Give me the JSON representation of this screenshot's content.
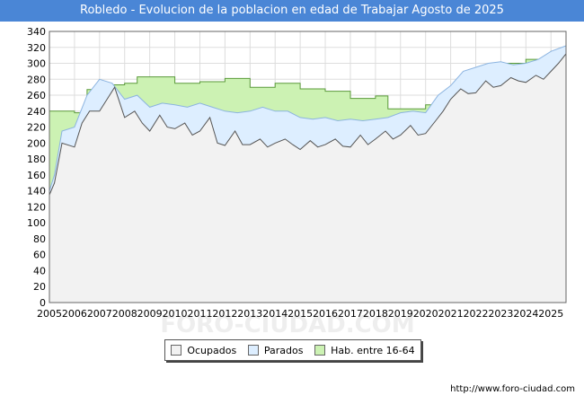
{
  "title": "Robledo - Evolucion de la poblacion en edad de Trabajar Agosto de 2025",
  "credit": "http://www.foro-ciudad.com",
  "watermark": "FORO-CIUDAD.COM",
  "colors": {
    "title_bg": "#4a86d6",
    "ocupados_fill": "#f2f2f2",
    "ocupados_line": "#555555",
    "parados_fill": "#ddeeff",
    "parados_line": "#8cb4e0",
    "hab_fill": "#ccf2b3",
    "hab_line": "#5a9a3a"
  },
  "chart_data": {
    "type": "area",
    "title": "Robledo - Evolucion de la poblacion en edad de Trabajar Agosto de 2025",
    "xlabel": "",
    "ylabel": "",
    "xlim": [
      2005,
      2025.6
    ],
    "ylim": [
      0,
      340
    ],
    "x_ticks": [
      "2005",
      "2006",
      "2007",
      "2008",
      "2009",
      "2010",
      "2011",
      "2012",
      "2013",
      "2014",
      "2015",
      "2016",
      "2017",
      "2018",
      "2019",
      "2020",
      "2021",
      "2022",
      "2023",
      "2024",
      "2025"
    ],
    "y_ticks": [
      0,
      20,
      40,
      60,
      80,
      100,
      120,
      140,
      160,
      180,
      200,
      220,
      240,
      260,
      280,
      300,
      320,
      340
    ],
    "grid": true,
    "legend": "bottom-center",
    "series": [
      {
        "name": "Hab. entre 16-64",
        "x": [
          2005,
          2005.3,
          2005.5,
          2006,
          2006.5,
          2007,
          2007.5,
          2008,
          2008.5,
          2009,
          2010,
          2011,
          2012,
          2013,
          2014,
          2015,
          2016,
          2017,
          2018,
          2018.5,
          2019,
          2020,
          2020.2,
          2021,
          2022,
          2023,
          2024,
          2025,
          2025.6
        ],
        "values": [
          240,
          240,
          240,
          238,
          267,
          267,
          273,
          275,
          283,
          283,
          275,
          277,
          281,
          270,
          275,
          268,
          265,
          256,
          259,
          243,
          243,
          248,
          248,
          270,
          282,
          300,
          305,
          315,
          320
        ]
      },
      {
        "name": "Parados",
        "x": [
          2005,
          2005.2,
          2005.5,
          2006,
          2006.5,
          2007,
          2007.5,
          2008,
          2008.5,
          2009,
          2009.5,
          2010,
          2010.5,
          2011,
          2011.5,
          2012,
          2012.5,
          2013,
          2013.5,
          2014,
          2014.5,
          2015,
          2015.5,
          2016,
          2016.5,
          2017,
          2017.5,
          2018,
          2018.5,
          2019,
          2019.5,
          2020,
          2020.5,
          2021,
          2021.5,
          2022,
          2022.5,
          2023,
          2023.5,
          2024,
          2024.5,
          2025,
          2025.6
        ],
        "values": [
          140,
          160,
          215,
          220,
          260,
          280,
          275,
          255,
          260,
          245,
          250,
          248,
          245,
          250,
          245,
          240,
          238,
          240,
          245,
          240,
          240,
          232,
          230,
          232,
          228,
          230,
          228,
          230,
          232,
          238,
          240,
          238,
          260,
          272,
          290,
          295,
          300,
          302,
          298,
          300,
          305,
          315,
          322
        ]
      },
      {
        "name": "Ocupados",
        "x": [
          2005,
          2005.2,
          2005.5,
          2006,
          2006.3,
          2006.6,
          2007,
          2007.3,
          2007.6,
          2008,
          2008.4,
          2008.7,
          2009,
          2009.4,
          2009.7,
          2010,
          2010.4,
          2010.7,
          2011,
          2011.4,
          2011.7,
          2012,
          2012.4,
          2012.7,
          2013,
          2013.4,
          2013.7,
          2014,
          2014.4,
          2014.7,
          2015,
          2015.4,
          2015.7,
          2016,
          2016.4,
          2016.7,
          2017,
          2017.4,
          2017.7,
          2018,
          2018.4,
          2018.7,
          2019,
          2019.4,
          2019.7,
          2020,
          2020.4,
          2020.7,
          2021,
          2021.4,
          2021.7,
          2022,
          2022.4,
          2022.7,
          2023,
          2023.4,
          2023.7,
          2024,
          2024.4,
          2024.7,
          2025,
          2025.3,
          2025.6
        ],
        "values": [
          135,
          150,
          200,
          195,
          225,
          240,
          240,
          255,
          270,
          232,
          240,
          225,
          215,
          235,
          220,
          218,
          225,
          210,
          215,
          232,
          200,
          197,
          215,
          198,
          198,
          205,
          195,
          200,
          205,
          198,
          192,
          203,
          195,
          198,
          205,
          196,
          195,
          210,
          198,
          205,
          215,
          205,
          210,
          222,
          210,
          212,
          228,
          240,
          255,
          268,
          262,
          263,
          278,
          270,
          272,
          282,
          278,
          276,
          285,
          280,
          290,
          300,
          312
        ]
      }
    ]
  },
  "legend_items": [
    {
      "label": "Ocupados",
      "color": "#f2f2f2"
    },
    {
      "label": "Parados",
      "color": "#ddeeff"
    },
    {
      "label": "Hab. entre 16-64",
      "color": "#ccf2b3"
    }
  ]
}
